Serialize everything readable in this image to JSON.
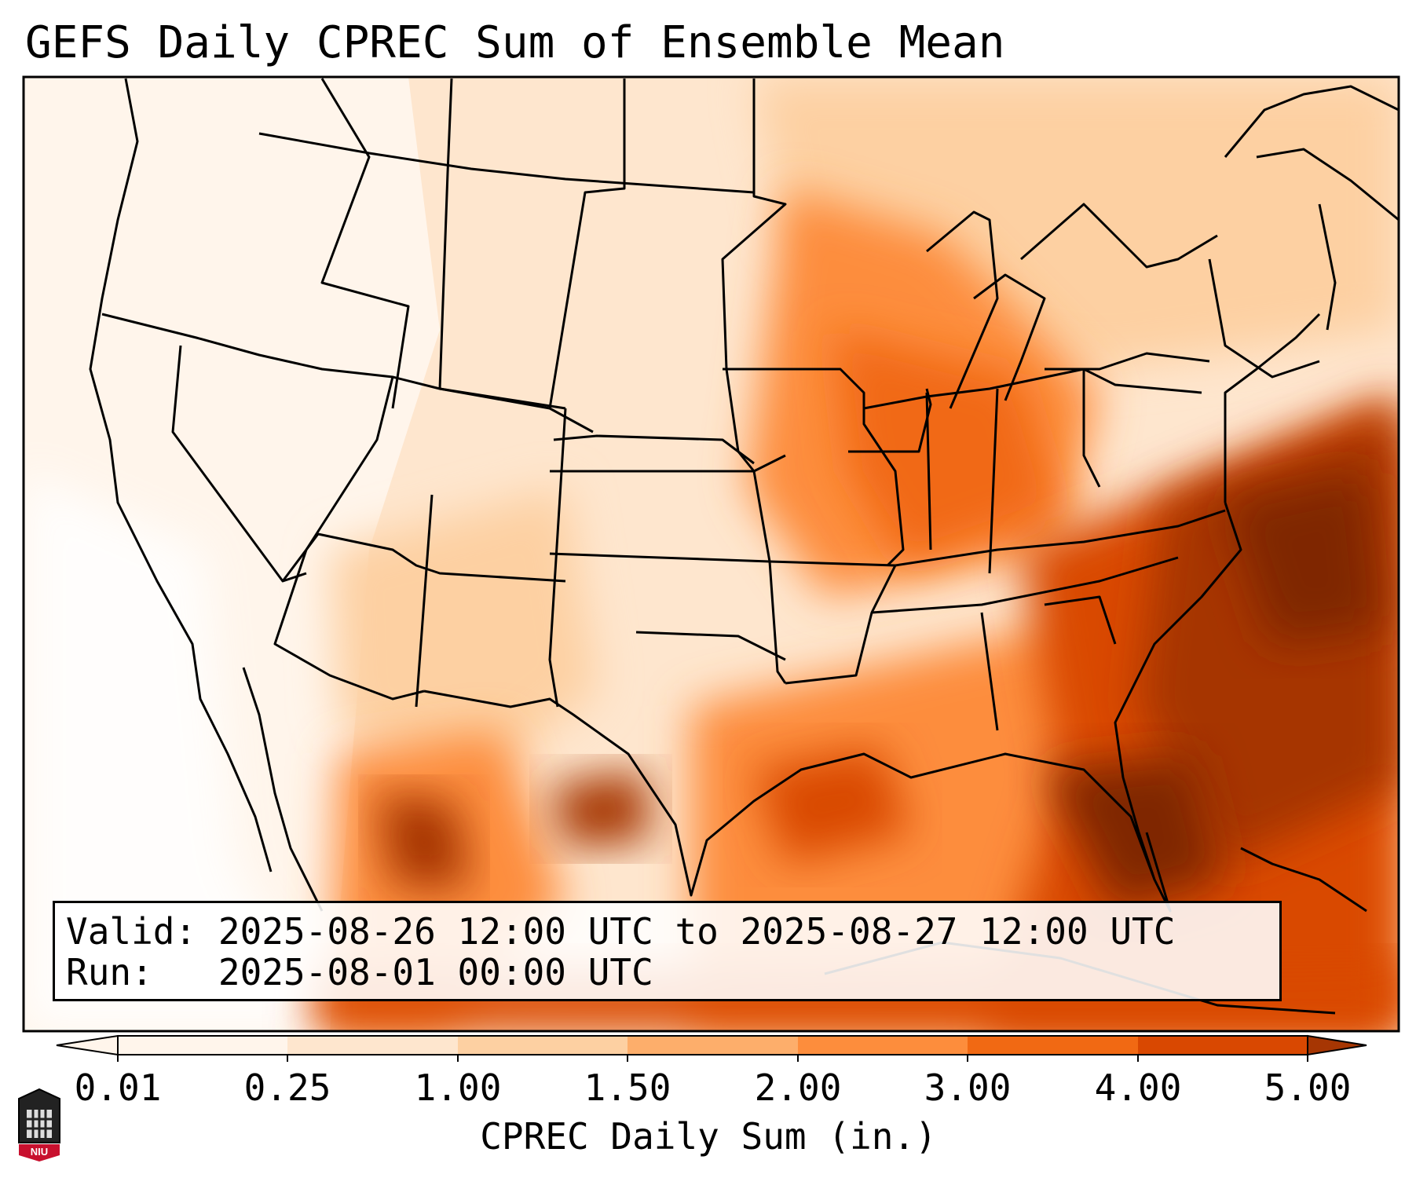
{
  "title": "GEFS Daily CPREC Sum of Ensemble Mean",
  "info": {
    "valid_label": "Valid:",
    "valid_value": "2025-08-26 12:00 UTC to 2025-08-27 12:00 UTC",
    "run_label": "Run:",
    "run_value": "2025-08-01 00:00 UTC"
  },
  "colorbar": {
    "label": "CPREC Daily Sum (in.)",
    "ticks": [
      "0.01",
      "0.25",
      "1.00",
      "1.50",
      "2.00",
      "3.00",
      "4.00",
      "5.00"
    ],
    "colors": [
      "#fff5eb",
      "#fee6ce",
      "#fdd0a2",
      "#fdae6b",
      "#fd8d3c",
      "#f16913",
      "#d94801",
      "#a63603",
      "#7f2704"
    ]
  },
  "logo": {
    "text": "NIU",
    "color": "#c8102e"
  }
}
